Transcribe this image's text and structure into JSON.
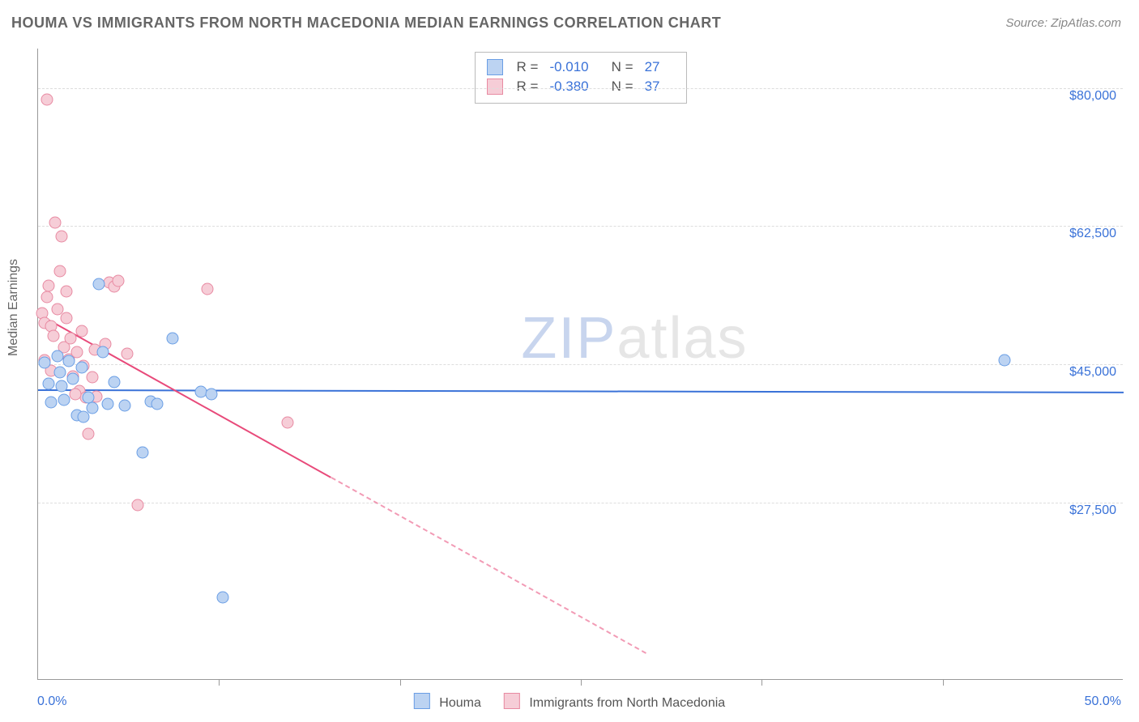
{
  "title": "HOUMA VS IMMIGRANTS FROM NORTH MACEDONIA MEDIAN EARNINGS CORRELATION CHART",
  "source_label": "Source: ZipAtlas.com",
  "y_axis_label": "Median Earnings",
  "watermark": {
    "left": "ZIP",
    "right": "atlas"
  },
  "chart": {
    "type": "scatter",
    "xlim": [
      0,
      50
    ],
    "ylim": [
      5000,
      85000
    ],
    "x_tick_labels": [
      "0.0%",
      "50.0%"
    ],
    "x_minor_ticks": [
      8.33,
      16.67,
      25,
      33.33,
      41.67
    ],
    "y_gridlines": [
      {
        "value": 80000,
        "label": "$80,000"
      },
      {
        "value": 62500,
        "label": "$62,500"
      },
      {
        "value": 45000,
        "label": "$45,000"
      },
      {
        "value": 27500,
        "label": "$27,500"
      }
    ],
    "background_color": "#ffffff",
    "grid_color": "#dddddd",
    "axis_color": "#999999",
    "tick_label_color": "#3a72d8",
    "point_radius": 7.5,
    "series": {
      "houma": {
        "label": "Houma",
        "fill_color": "#bcd3f2",
        "stroke_color": "#6a9ee5",
        "R": "-0.010",
        "N": "27",
        "trend": {
          "color": "#3a72d8",
          "x1": 0,
          "y1": 41800,
          "x2": 50,
          "y2": 41500,
          "solid_until_x": 50
        },
        "points": [
          {
            "x": 0.3,
            "y": 45200
          },
          {
            "x": 0.5,
            "y": 42500
          },
          {
            "x": 0.6,
            "y": 40200
          },
          {
            "x": 0.9,
            "y": 46000
          },
          {
            "x": 1.0,
            "y": 44000
          },
          {
            "x": 1.1,
            "y": 42200
          },
          {
            "x": 1.2,
            "y": 40500
          },
          {
            "x": 1.4,
            "y": 45400
          },
          {
            "x": 1.6,
            "y": 43200
          },
          {
            "x": 1.8,
            "y": 38500
          },
          {
            "x": 2.0,
            "y": 44600
          },
          {
            "x": 2.3,
            "y": 40800
          },
          {
            "x": 2.5,
            "y": 39500
          },
          {
            "x": 2.8,
            "y": 55200
          },
          {
            "x": 3.0,
            "y": 46500
          },
          {
            "x": 3.2,
            "y": 40000
          },
          {
            "x": 3.5,
            "y": 42700
          },
          {
            "x": 4.0,
            "y": 39800
          },
          {
            "x": 4.8,
            "y": 33800
          },
          {
            "x": 5.2,
            "y": 40300
          },
          {
            "x": 5.5,
            "y": 40000
          },
          {
            "x": 6.2,
            "y": 48300
          },
          {
            "x": 7.5,
            "y": 41500
          },
          {
            "x": 8.0,
            "y": 41200
          },
          {
            "x": 8.5,
            "y": 15500
          },
          {
            "x": 44.5,
            "y": 45500
          },
          {
            "x": 2.1,
            "y": 38300
          }
        ]
      },
      "immigrants": {
        "label": "Immigrants from North Macedonia",
        "fill_color": "#f6cdd7",
        "stroke_color": "#e88aa2",
        "R": "-0.380",
        "N": "37",
        "trend": {
          "color": "#e84a7a",
          "x1": 0,
          "y1": 51500,
          "x2": 28,
          "y2": 8500,
          "solid_until_x": 13.5
        },
        "points": [
          {
            "x": 0.2,
            "y": 51500
          },
          {
            "x": 0.3,
            "y": 50200
          },
          {
            "x": 0.4,
            "y": 53500
          },
          {
            "x": 0.5,
            "y": 55000
          },
          {
            "x": 0.6,
            "y": 49800
          },
          {
            "x": 0.7,
            "y": 48600
          },
          {
            "x": 0.8,
            "y": 63000
          },
          {
            "x": 0.9,
            "y": 52000
          },
          {
            "x": 1.1,
            "y": 61200
          },
          {
            "x": 1.2,
            "y": 47200
          },
          {
            "x": 1.3,
            "y": 50800
          },
          {
            "x": 1.4,
            "y": 45600
          },
          {
            "x": 1.5,
            "y": 48300
          },
          {
            "x": 1.6,
            "y": 43500
          },
          {
            "x": 1.8,
            "y": 46500
          },
          {
            "x": 1.9,
            "y": 41600
          },
          {
            "x": 2.1,
            "y": 44800
          },
          {
            "x": 2.2,
            "y": 40800
          },
          {
            "x": 2.3,
            "y": 36200
          },
          {
            "x": 2.5,
            "y": 43400
          },
          {
            "x": 2.7,
            "y": 40900
          },
          {
            "x": 3.1,
            "y": 47600
          },
          {
            "x": 3.3,
            "y": 55400
          },
          {
            "x": 3.5,
            "y": 54800
          },
          {
            "x": 3.7,
            "y": 55600
          },
          {
            "x": 4.1,
            "y": 46300
          },
          {
            "x": 4.6,
            "y": 27200
          },
          {
            "x": 0.4,
            "y": 78500
          },
          {
            "x": 1.0,
            "y": 56800
          },
          {
            "x": 1.3,
            "y": 54200
          },
          {
            "x": 0.3,
            "y": 45500
          },
          {
            "x": 0.6,
            "y": 44200
          },
          {
            "x": 1.7,
            "y": 41200
          },
          {
            "x": 7.8,
            "y": 54500
          },
          {
            "x": 11.5,
            "y": 37600
          },
          {
            "x": 2.0,
            "y": 49200
          },
          {
            "x": 2.6,
            "y": 46800
          }
        ]
      }
    }
  }
}
